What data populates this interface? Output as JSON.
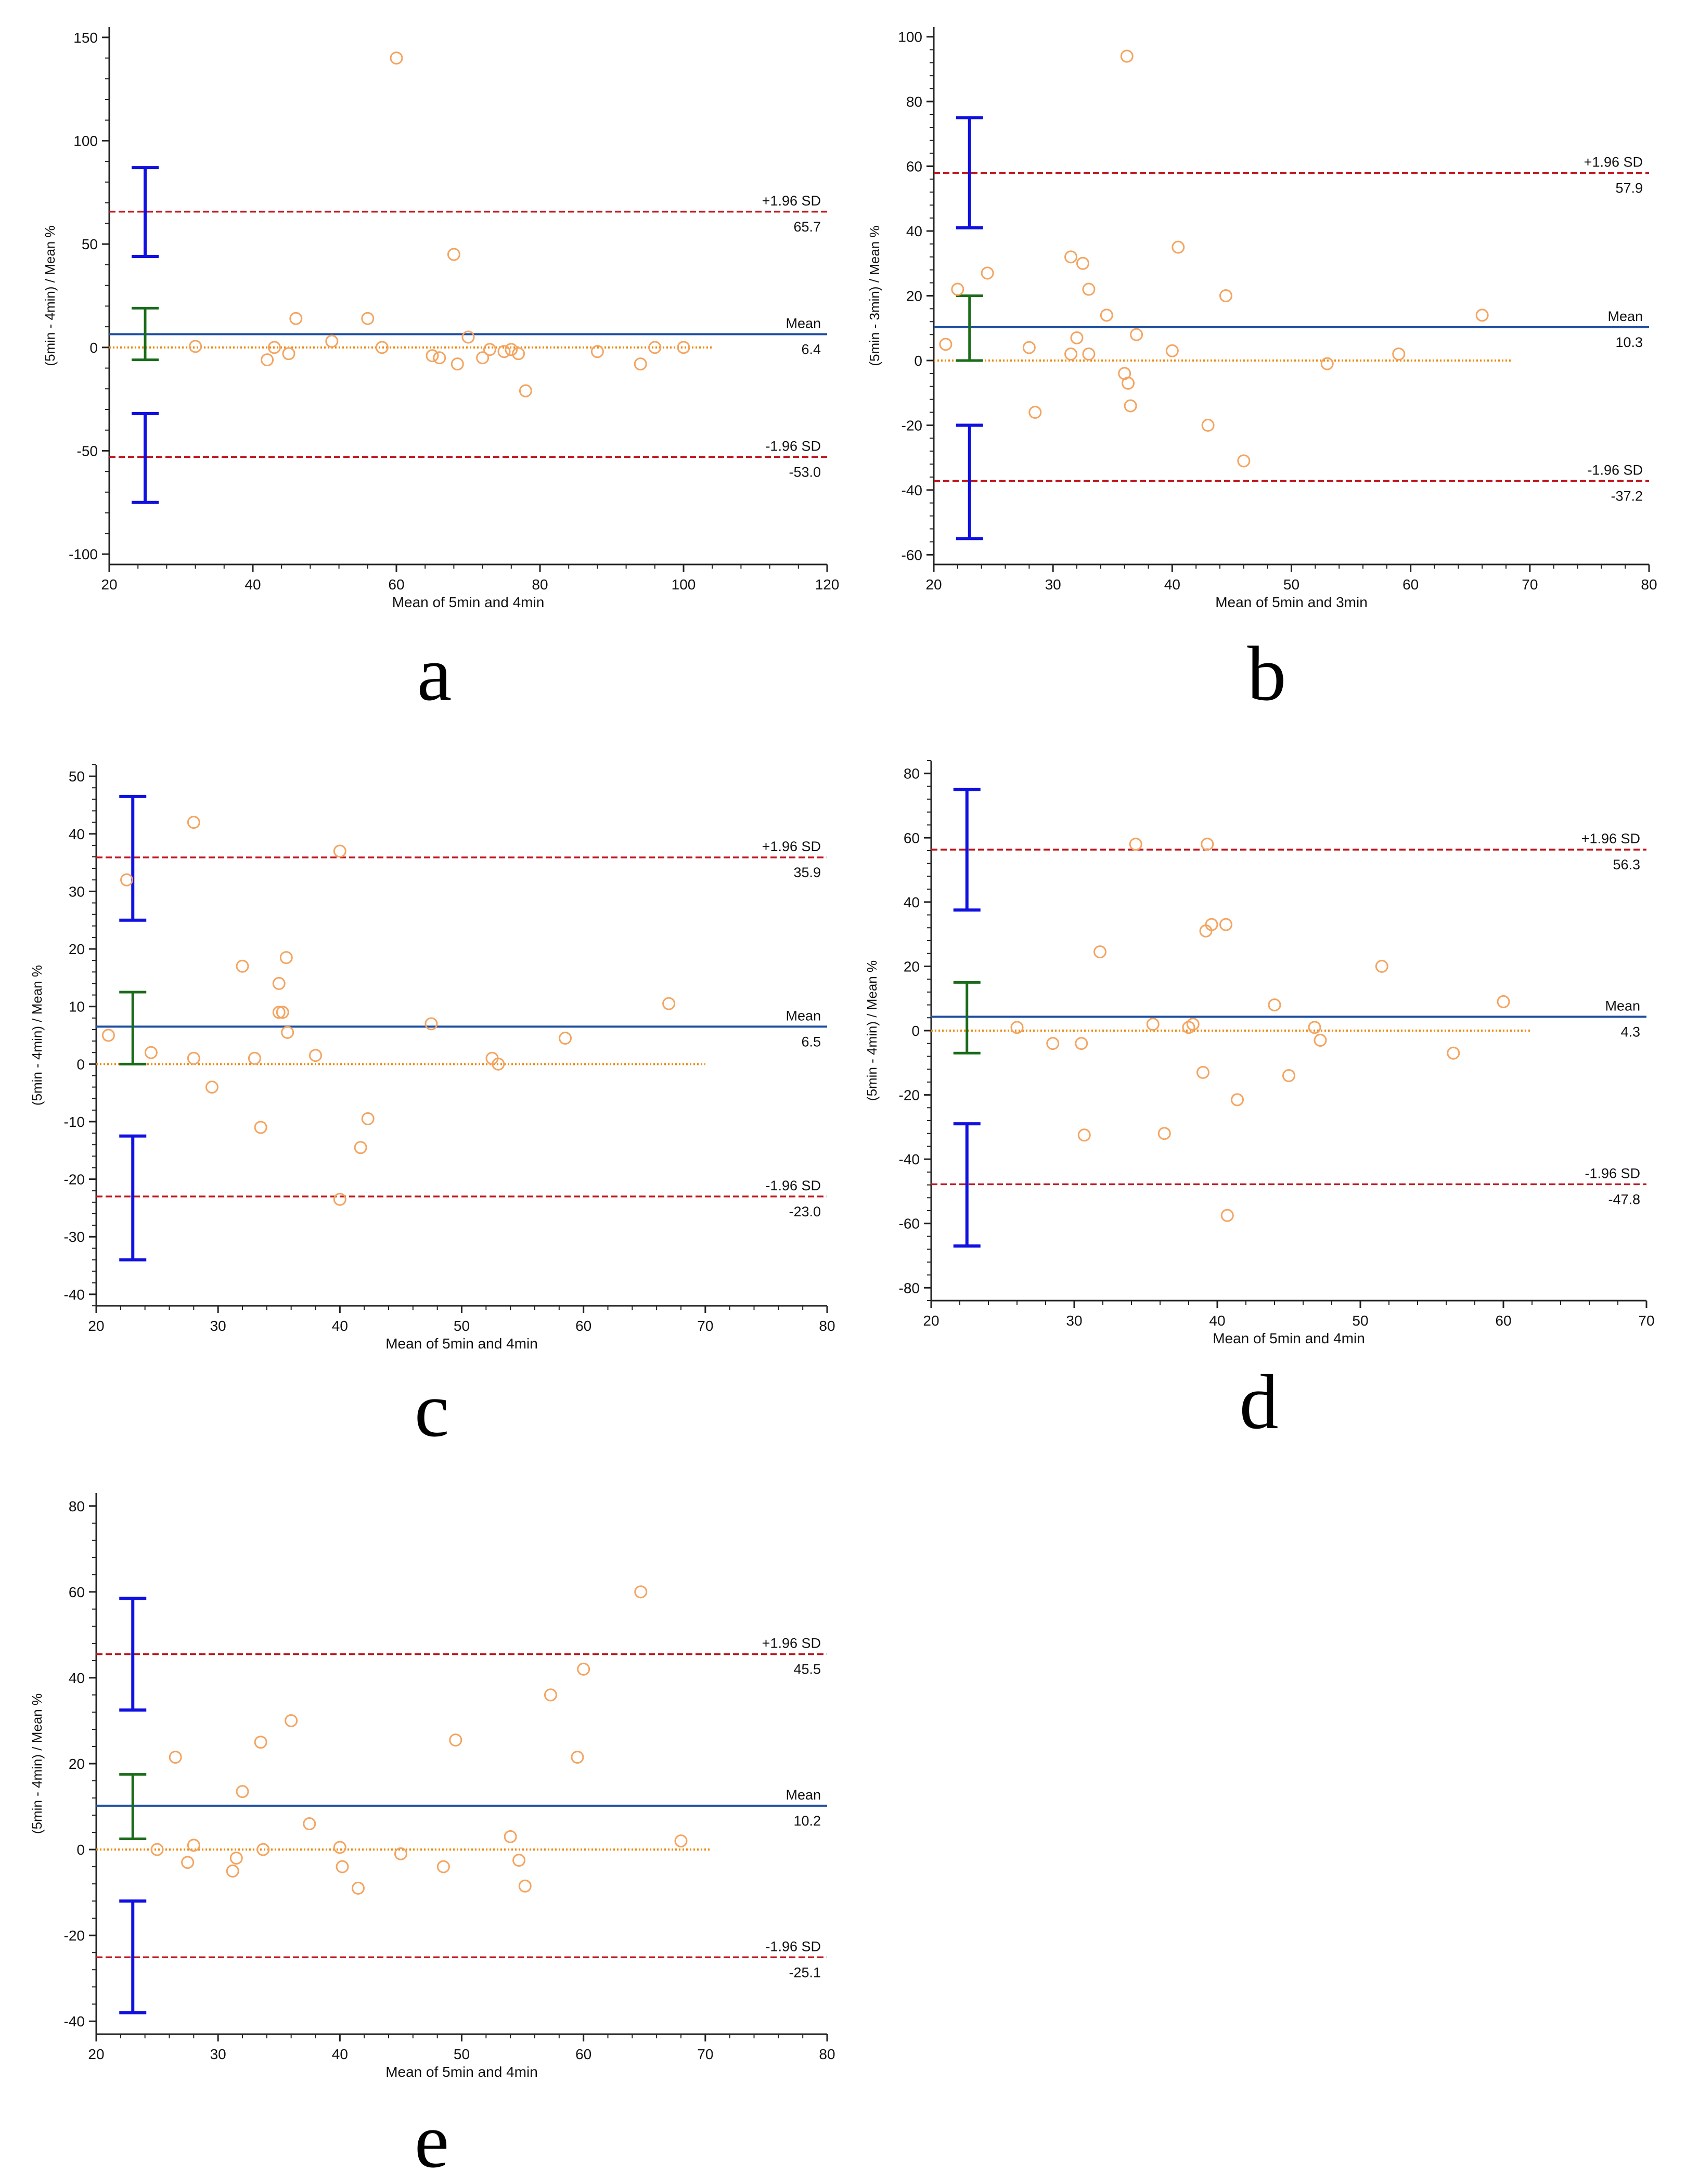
{
  "colors": {
    "scatter": "#f4a460",
    "mean_line": "#1f4fa0",
    "sd_line": "#c0161e",
    "zero_line": "#ee8a10",
    "ci_limits": "#1010e0",
    "ci_mean": "#1a6b1a",
    "axis": "#222222"
  },
  "chart_data": [
    {
      "type": "scatter",
      "panel": "a",
      "xlabel": "Mean of 5min and 4min",
      "ylabel": "(5min - 4min) / Mean %",
      "xlim": [
        20,
        120
      ],
      "ylim": [
        -105,
        155
      ],
      "xticks": [
        20,
        40,
        60,
        80,
        100,
        120
      ],
      "yticks": [
        -100,
        -50,
        0,
        50,
        100,
        150
      ],
      "x_end": 104,
      "mean": 6.4,
      "upper": 65.7,
      "lower": -53.0,
      "mean_text": "Mean",
      "mean_value": "6.4",
      "upper_text": "+1.96 SD",
      "upper_value": "65.7",
      "lower_text": "-1.96 SD",
      "lower_value": "-53.0",
      "ci_x": 25,
      "ci_upper": [
        44,
        87
      ],
      "ci_mean": [
        -6,
        19
      ],
      "ci_lower": [
        -75,
        -32
      ],
      "points": [
        [
          32,
          0.5
        ],
        [
          42,
          -6
        ],
        [
          43,
          0
        ],
        [
          45,
          -3
        ],
        [
          46,
          14
        ],
        [
          51,
          3
        ],
        [
          56,
          14
        ],
        [
          58,
          0
        ],
        [
          60,
          140
        ],
        [
          65,
          -4
        ],
        [
          66,
          -5
        ],
        [
          68,
          45
        ],
        [
          68.5,
          -8
        ],
        [
          70,
          5
        ],
        [
          72,
          -5
        ],
        [
          73,
          -1
        ],
        [
          75,
          -2
        ],
        [
          76,
          -1
        ],
        [
          77,
          -3
        ],
        [
          78,
          -21
        ],
        [
          88,
          -2
        ],
        [
          94,
          -8
        ],
        [
          96,
          0
        ],
        [
          100,
          0
        ]
      ]
    },
    {
      "type": "scatter",
      "panel": "b",
      "xlabel": "Mean of 5min and 3min",
      "ylabel": "(5min - 3min) / Mean %",
      "xlim": [
        20,
        80
      ],
      "ylim": [
        -63,
        103
      ],
      "xticks": [
        20,
        30,
        40,
        50,
        60,
        70,
        80
      ],
      "yticks": [
        -60,
        -40,
        -20,
        0,
        20,
        40,
        60,
        80,
        100
      ],
      "x_end": 68.5,
      "mean": 10.3,
      "upper": 57.9,
      "lower": -37.2,
      "mean_text": "Mean",
      "mean_value": "10.3",
      "upper_text": "+1.96 SD",
      "upper_value": "57.9",
      "lower_text": "-1.96 SD",
      "lower_value": "-37.2",
      "ci_x": 23,
      "ci_upper": [
        41,
        75
      ],
      "ci_mean": [
        0,
        20
      ],
      "ci_lower": [
        -55,
        -20
      ],
      "points": [
        [
          21,
          5
        ],
        [
          22,
          22
        ],
        [
          24.5,
          27
        ],
        [
          28,
          4
        ],
        [
          28.5,
          -16
        ],
        [
          31.5,
          2
        ],
        [
          31.5,
          32
        ],
        [
          32,
          7
        ],
        [
          32.5,
          30
        ],
        [
          33,
          2
        ],
        [
          33,
          22
        ],
        [
          34.5,
          14
        ],
        [
          36,
          -4
        ],
        [
          36.2,
          94
        ],
        [
          36.3,
          -7
        ],
        [
          36.5,
          -14
        ],
        [
          37,
          8
        ],
        [
          40,
          3
        ],
        [
          40.5,
          35
        ],
        [
          43,
          -20
        ],
        [
          44.5,
          20
        ],
        [
          46,
          -31
        ],
        [
          53,
          -1
        ],
        [
          59,
          2
        ],
        [
          66,
          14
        ]
      ]
    },
    {
      "type": "scatter",
      "panel": "c",
      "xlabel": "Mean of 5min and 4min",
      "ylabel": "(5min - 4min) / Mean %",
      "xlim": [
        20,
        80
      ],
      "ylim": [
        -42,
        52
      ],
      "xticks": [
        20,
        30,
        40,
        50,
        60,
        70,
        80
      ],
      "yticks": [
        -40,
        -30,
        -20,
        -10,
        0,
        10,
        20,
        30,
        40,
        50
      ],
      "x_end": 70,
      "mean": 6.5,
      "upper": 35.9,
      "lower": -23.0,
      "mean_text": "Mean",
      "mean_value": "6.5",
      "upper_text": "+1.96 SD",
      "upper_value": "35.9",
      "lower_text": "-1.96 SD",
      "lower_value": "-23.0",
      "ci_x": 23,
      "ci_upper": [
        25,
        46.5
      ],
      "ci_mean": [
        0,
        12.5
      ],
      "ci_lower": [
        -34,
        -12.5
      ],
      "points": [
        [
          21,
          5
        ],
        [
          22.5,
          32
        ],
        [
          24.5,
          2
        ],
        [
          28,
          42
        ],
        [
          28,
          1
        ],
        [
          29.5,
          -4
        ],
        [
          32,
          17
        ],
        [
          33,
          1
        ],
        [
          33.5,
          -11
        ],
        [
          35,
          14
        ],
        [
          35,
          9
        ],
        [
          35.3,
          9
        ],
        [
          35.6,
          18.5
        ],
        [
          35.7,
          5.5
        ],
        [
          38,
          1.5
        ],
        [
          40,
          37
        ],
        [
          40,
          -23.5
        ],
        [
          41.7,
          -14.5
        ],
        [
          42.3,
          -9.5
        ],
        [
          47.5,
          7
        ],
        [
          52.5,
          1
        ],
        [
          53,
          0
        ],
        [
          58.5,
          4.5
        ],
        [
          67,
          10.5
        ]
      ]
    },
    {
      "type": "scatter",
      "panel": "d",
      "xlabel": "Mean of 5min and 4min",
      "ylabel": "(5min - 4min) / Mean %",
      "xlim": [
        20,
        70
      ],
      "ylim": [
        -84,
        84
      ],
      "xticks": [
        20,
        30,
        40,
        50,
        60,
        70
      ],
      "yticks": [
        -80,
        -60,
        -40,
        -20,
        0,
        20,
        40,
        60,
        80
      ],
      "x_end": 62,
      "mean": 4.3,
      "upper": 56.3,
      "lower": -47.8,
      "mean_text": "Mean",
      "mean_value": "4.3",
      "upper_text": "+1.96 SD",
      "upper_value": "56.3",
      "lower_text": "-1.96 SD",
      "lower_value": "-47.8",
      "ci_x": 22.5,
      "ci_upper": [
        37.5,
        75
      ],
      "ci_mean": [
        -7,
        15
      ],
      "ci_lower": [
        -67,
        -29
      ],
      "points": [
        [
          26,
          1
        ],
        [
          28.5,
          -4
        ],
        [
          30.5,
          -4
        ],
        [
          30.7,
          -32.5
        ],
        [
          31.8,
          24.5
        ],
        [
          34.3,
          58
        ],
        [
          35.5,
          2
        ],
        [
          36.3,
          -32
        ],
        [
          38,
          1
        ],
        [
          38.3,
          2
        ],
        [
          39,
          -13
        ],
        [
          39.2,
          31
        ],
        [
          39.3,
          58
        ],
        [
          39.6,
          33
        ],
        [
          40.6,
          33
        ],
        [
          40.7,
          -57.5
        ],
        [
          41.4,
          -21.5
        ],
        [
          44,
          8
        ],
        [
          45,
          -14
        ],
        [
          46.8,
          1
        ],
        [
          47.2,
          -3
        ],
        [
          51.5,
          20
        ],
        [
          56.5,
          -7
        ],
        [
          60,
          9
        ]
      ]
    },
    {
      "type": "scatter",
      "panel": "e",
      "xlabel": "Mean of 5min and 4min",
      "ylabel": "(5min - 4min) / Mean %",
      "xlim": [
        20,
        80
      ],
      "ylim": [
        -43,
        83
      ],
      "xticks": [
        20,
        30,
        40,
        50,
        60,
        70,
        80
      ],
      "yticks": [
        -40,
        -20,
        0,
        20,
        40,
        60,
        80
      ],
      "x_end": 70.5,
      "mean": 10.2,
      "upper": 45.5,
      "lower": -25.1,
      "mean_text": "Mean",
      "mean_value": "10.2",
      "upper_text": "+1.96 SD",
      "upper_value": "45.5",
      "lower_text": "-1.96 SD",
      "lower_value": "-25.1",
      "ci_x": 23,
      "ci_upper": [
        32.5,
        58.5
      ],
      "ci_mean": [
        2.5,
        17.5
      ],
      "ci_lower": [
        -38,
        -12
      ],
      "points": [
        [
          25,
          0
        ],
        [
          26.5,
          21.5
        ],
        [
          27.5,
          -3
        ],
        [
          28,
          1
        ],
        [
          31.2,
          -5
        ],
        [
          31.5,
          -2
        ],
        [
          32,
          13.5
        ],
        [
          33.5,
          25
        ],
        [
          33.7,
          0
        ],
        [
          36,
          30
        ],
        [
          37.5,
          6
        ],
        [
          40,
          0.5
        ],
        [
          40.2,
          -4
        ],
        [
          41.5,
          -9
        ],
        [
          45,
          -1
        ],
        [
          48.5,
          -4
        ],
        [
          49.5,
          25.5
        ],
        [
          54,
          3
        ],
        [
          54.7,
          -2.5
        ],
        [
          55.2,
          -8.5
        ],
        [
          57.3,
          36
        ],
        [
          59.5,
          21.5
        ],
        [
          60,
          42
        ],
        [
          64.7,
          60
        ],
        [
          68,
          2
        ]
      ]
    }
  ]
}
